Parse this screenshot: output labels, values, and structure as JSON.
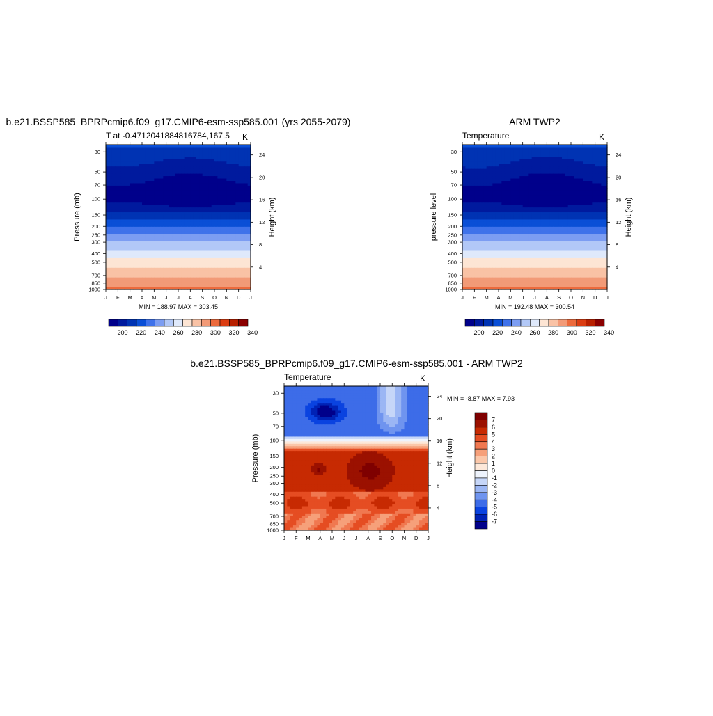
{
  "chart_data": [
    {
      "type": "heatmap",
      "title": "b.e21.BSSP585_BPRPcmip6.f09_g17.CMIP6-esm-ssp585.001 (yrs 2055-2079)",
      "subtitle_left": "T at -0.4712041884816784,167.5",
      "units": "K",
      "ylabel": "Pressure (mb)",
      "ylabel_right": "Height (km)",
      "minmax_label": "MIN = 188.97 MAX = 303.45",
      "min": 188.97,
      "max": 303.45,
      "x": [
        "J",
        "F",
        "M",
        "A",
        "M",
        "J",
        "J",
        "A",
        "S",
        "O",
        "N",
        "D",
        "J"
      ],
      "y_pressure_ticks": [
        1000,
        850,
        700,
        500,
        400,
        300,
        250,
        200,
        150,
        100,
        70,
        50,
        30
      ],
      "y_height_ticks": [
        4,
        8,
        12,
        16,
        20,
        24
      ],
      "colorbar": {
        "levels": [
          195,
          200,
          205,
          210,
          215,
          220,
          225,
          230,
          235,
          240,
          245,
          250,
          255,
          260,
          265,
          270,
          275,
          280,
          285,
          290,
          295,
          300,
          305,
          310,
          315,
          320,
          325,
          330,
          335,
          340
        ],
        "labels": [
          "200",
          "220",
          "240",
          "260",
          "280",
          "300",
          "320",
          "340"
        ]
      }
    },
    {
      "type": "heatmap",
      "title": "ARM TWP2",
      "subtitle_left": "Temperature",
      "units": "K",
      "ylabel": "pressure level",
      "ylabel_right": "Height (km)",
      "minmax_label": "MIN = 192.48 MAX = 300.54",
      "min": 192.48,
      "max": 300.54,
      "x": [
        "J",
        "F",
        "M",
        "A",
        "M",
        "J",
        "J",
        "A",
        "S",
        "O",
        "N",
        "D",
        "J"
      ],
      "y_pressure_ticks": [
        1000,
        850,
        700,
        500,
        400,
        300,
        250,
        200,
        150,
        100,
        70,
        50,
        30
      ],
      "y_height_ticks": [
        4,
        8,
        12,
        16,
        20,
        24
      ],
      "colorbar": {
        "labels": [
          "200",
          "220",
          "240",
          "260",
          "280",
          "300",
          "320",
          "340"
        ]
      }
    },
    {
      "type": "heatmap",
      "title": "b.e21.BSSP585_BPRPcmip6.f09_g17.CMIP6-esm-ssp585.001 - ARM TWP2",
      "subtitle_left": "Temperature",
      "units": "K",
      "ylabel": "Pressure (mb)",
      "ylabel_right": "Height (km)",
      "minmax_label": "MIN =  -8.87 MAX =   7.93",
      "min": -8.87,
      "max": 7.93,
      "x": [
        "J",
        "F",
        "M",
        "A",
        "M",
        "J",
        "J",
        "A",
        "S",
        "O",
        "N",
        "D",
        "J"
      ],
      "y_pressure_ticks": [
        1000,
        850,
        700,
        500,
        400,
        300,
        250,
        200,
        150,
        100,
        70,
        50,
        30
      ],
      "y_height_ticks": [
        4,
        8,
        12,
        16,
        20,
        24
      ],
      "colorbar": {
        "labels": [
          "7",
          "6",
          "5",
          "4",
          "3",
          "2",
          "1",
          "0",
          "-1",
          "-2",
          "-3",
          "-4",
          "-5",
          "-6",
          "-7"
        ]
      }
    }
  ],
  "colors": {
    "temp_scale": [
      "#00008b",
      "#001a9e",
      "#0033b3",
      "#0a4fd6",
      "#3f72ea",
      "#7c9df2",
      "#b2c8f7",
      "#dfe9fb",
      "#fde5d4",
      "#f9c2a5",
      "#f29a77",
      "#ec6a3c",
      "#db3d12",
      "#b82000",
      "#8b0000"
    ],
    "diff_scale": [
      "#00008b",
      "#0022b5",
      "#0a43e0",
      "#3d6ce8",
      "#6f94ef",
      "#9bb6f4",
      "#c6d6f8",
      "#eef3fc",
      "#fde8d9",
      "#fbc7a9",
      "#f6a07a",
      "#f07850",
      "#e54d22",
      "#c72a02",
      "#9b1100",
      "#7f0000"
    ]
  }
}
